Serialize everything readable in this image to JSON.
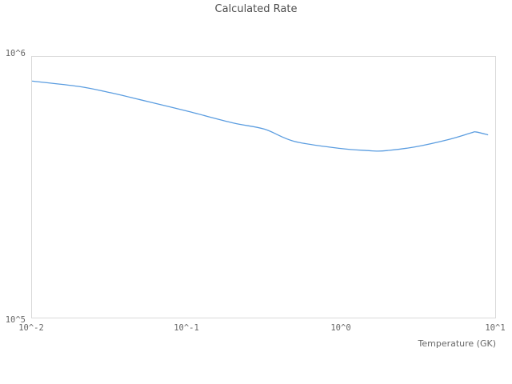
{
  "title": "Calculated Rate",
  "axes": {
    "x_label": "Temperature (GK)",
    "x_ticks": [
      "10^-2",
      "10^-1",
      "10^0",
      "10^1"
    ],
    "y_ticks": [
      "10^5",
      "10^6"
    ]
  },
  "colors": {
    "line": "#5b9de0",
    "plot_border": "#d9d9d9",
    "tick_text": "#666666",
    "title_text": "#4d4d4d",
    "background": "#ffffff"
  },
  "chart_data": {
    "type": "line",
    "title": "Calculated Rate",
    "xlabel": "Temperature (GK)",
    "ylabel": "",
    "x_scale": "log",
    "y_scale": "log",
    "xlim": [
      0.01,
      10
    ],
    "ylim": [
      100000,
      1000000
    ],
    "grid": false,
    "legend": "none",
    "x_tick_labels": [
      "10^-2",
      "10^-1",
      "10^0",
      "10^1"
    ],
    "y_tick_labels": [
      "10^5",
      "10^6"
    ],
    "series": [
      {
        "name": "Calculated Rate",
        "x": [
          0.01,
          0.02,
          0.032,
          0.05,
          0.1,
          0.2,
          0.32,
          0.5,
          1.0,
          1.5,
          1.7,
          2.0,
          3.0,
          5.0,
          7.0,
          7.5,
          9.0
        ],
        "y": [
          807000,
          770000,
          729000,
          685000,
          620000,
          558000,
          528000,
          474000,
          445000,
          437000,
          435000,
          437000,
          451000,
          482000,
          511000,
          515000,
          502000
        ]
      }
    ]
  }
}
